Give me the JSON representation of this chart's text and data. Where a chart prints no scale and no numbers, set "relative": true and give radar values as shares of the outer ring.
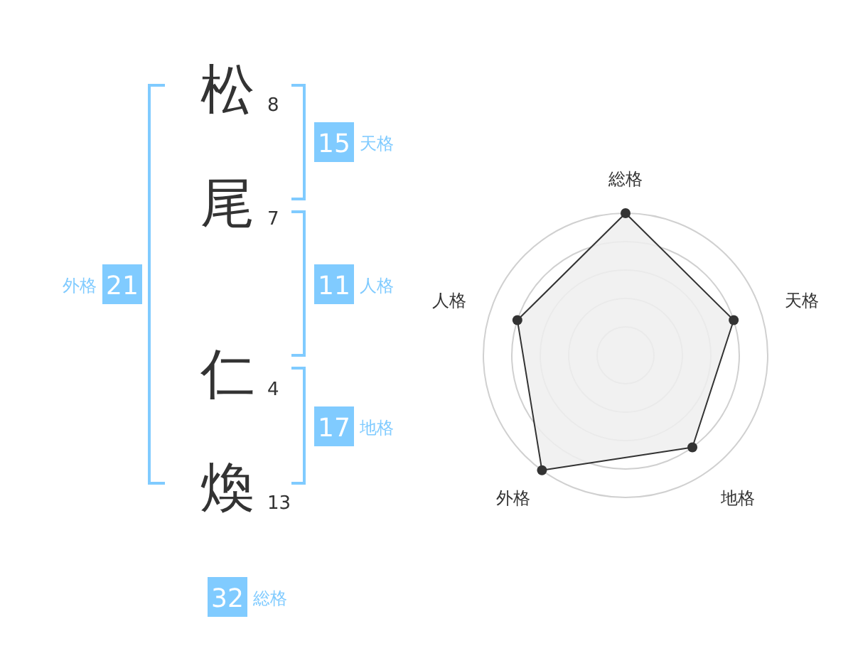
{
  "chart_data": [
    {
      "type": "other",
      "categories": [
        "松",
        "尾",
        "仁",
        "煥"
      ],
      "values": [
        8,
        7,
        4,
        13
      ],
      "data_labels": true,
      "color": "#80cbff",
      "annotations": [
        "15",
        "天格",
        "11",
        "人格",
        "17",
        "地格",
        "21",
        "外格",
        "32",
        "総格"
      ]
    },
    {
      "type": "radar",
      "categories": [
        "総格",
        "天格",
        "地格",
        "外格",
        "人格"
      ],
      "relative": true,
      "color": "#333333",
      "values": [
        1,
        0.8,
        0.8,
        1,
        0.8
      ]
    }
  ]
}
